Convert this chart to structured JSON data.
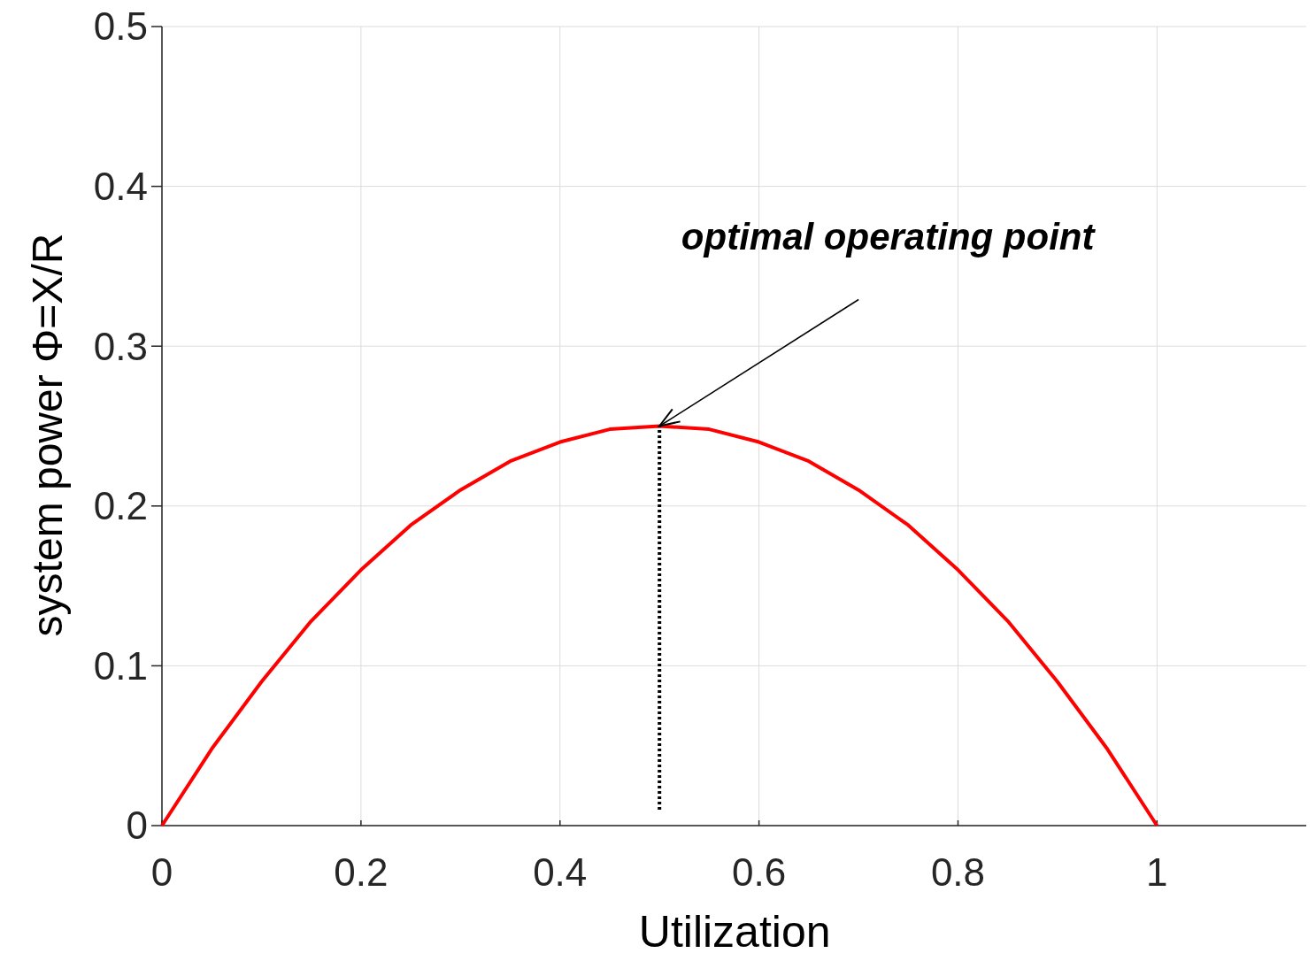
{
  "chart_data": {
    "type": "line",
    "xlabel": "Utilization",
    "ylabel": "system power  Φ=X/R",
    "xlim": [
      0,
      1.15
    ],
    "ylim": [
      0,
      0.5
    ],
    "xticks": [
      0,
      0.2,
      0.4,
      0.6,
      0.8,
      1
    ],
    "yticks": [
      0,
      0.1,
      0.2,
      0.3,
      0.4,
      0.5
    ],
    "grid": true,
    "series": [
      {
        "color": "#ff0000",
        "x": [
          0,
          0.05,
          0.1,
          0.15,
          0.2,
          0.25,
          0.3,
          0.35,
          0.4,
          0.45,
          0.5,
          0.55,
          0.6,
          0.65,
          0.7,
          0.75,
          0.8,
          0.85,
          0.9,
          0.95,
          1
        ],
        "values": [
          0,
          0.048,
          0.09,
          0.128,
          0.16,
          0.188,
          0.21,
          0.228,
          0.24,
          0.248,
          0.25,
          0.248,
          0.24,
          0.228,
          0.21,
          0.188,
          0.16,
          0.128,
          0.09,
          0.048,
          0
        ],
        "line_style": "solid"
      },
      {
        "color": "#000000",
        "x": [
          0.5,
          0.5
        ],
        "values": [
          0.01,
          0.25
        ],
        "line_style": "dotted"
      }
    ],
    "annotations": [
      {
        "text": "optimal operating point",
        "x": 0.5,
        "y": 0.25
      }
    ]
  }
}
